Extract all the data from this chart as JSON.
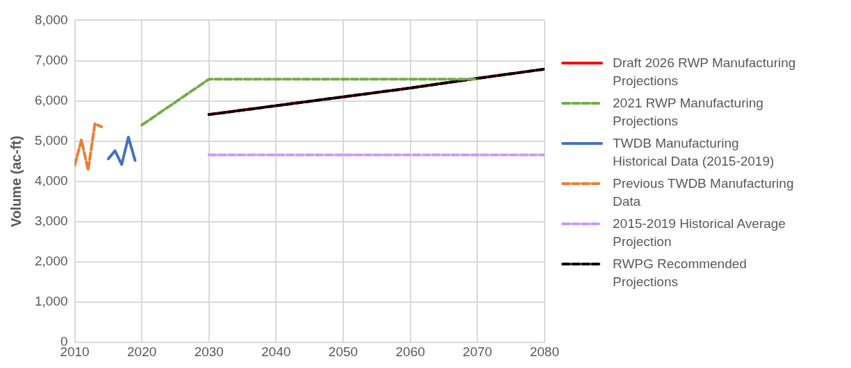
{
  "chart_data": {
    "type": "line",
    "ylabel": "Volume (ac-ft)",
    "xlim": [
      2010,
      2080
    ],
    "xticks": [
      2010,
      2020,
      2030,
      2040,
      2050,
      2060,
      2070,
      2080
    ],
    "ylim": [
      0,
      8000
    ],
    "yticks": [
      {
        "value": 0,
        "label": "0"
      },
      {
        "value": 1000,
        "label": "1,000"
      },
      {
        "value": 2000,
        "label": "2,000"
      },
      {
        "value": 3000,
        "label": "3,000"
      },
      {
        "value": 4000,
        "label": "4,000"
      },
      {
        "value": 5000,
        "label": "5,000"
      },
      {
        "value": 6000,
        "label": "6,000"
      },
      {
        "value": 7000,
        "label": "7,000"
      },
      {
        "value": 8000,
        "label": "8,000"
      }
    ],
    "grid": true,
    "legend": "right",
    "marker": "none",
    "series": [
      {
        "name": "Draft 2026 RWP Manufacturing Projections",
        "color": "#ff0000",
        "line_style": "solid",
        "x": [
          2030,
          2040,
          2050,
          2060,
          2070,
          2080
        ],
        "values": [
          5660,
          5880,
          6100,
          6320,
          6560,
          6790
        ]
      },
      {
        "name": "2021 RWP Manufacturing Projections",
        "color": "#70ad47",
        "line_style": "dashed",
        "x": [
          2020,
          2030,
          2040,
          2050,
          2060,
          2070
        ],
        "values": [
          5400,
          6540,
          6540,
          6540,
          6540,
          6540
        ]
      },
      {
        "name": "TWDB Manufacturing Historical Data (2015-2019)",
        "color": "#4472c4",
        "line_style": "solid",
        "x": [
          2015,
          2016,
          2017,
          2018,
          2019
        ],
        "values": [
          4560,
          4760,
          4420,
          5100,
          4520
        ]
      },
      {
        "name": "Previous TWDB Manufacturing Data",
        "color": "#ed7d31",
        "line_style": "dashed",
        "x": [
          2010,
          2011,
          2012,
          2013,
          2014
        ],
        "values": [
          4400,
          5030,
          4280,
          5430,
          5360
        ]
      },
      {
        "name": "2015-2019 Historical Average Projection",
        "color": "#cc99ff",
        "line_style": "dashed",
        "x": [
          2030,
          2040,
          2050,
          2060,
          2070,
          2080
        ],
        "values": [
          4660,
          4660,
          4660,
          4660,
          4660,
          4660
        ]
      },
      {
        "name": "RWPG Recommended Projections",
        "color": "#000000",
        "line_style": "dashed",
        "x": [
          2030,
          2040,
          2050,
          2060,
          2070,
          2080
        ],
        "values": [
          5660,
          5880,
          6100,
          6320,
          6560,
          6790
        ]
      }
    ]
  }
}
